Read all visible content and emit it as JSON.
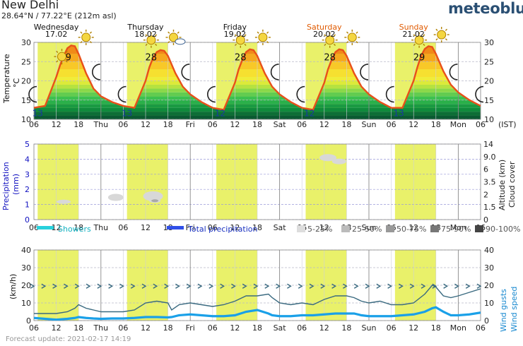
{
  "header": {
    "location": "New Delhi",
    "coords": "28.64°N / 77.22°E (212m asl)",
    "brand": "meteoblue",
    "brand_color": "#2a4f73"
  },
  "days": [
    {
      "name": "Wednesday",
      "date": "17.02",
      "weekend": false
    },
    {
      "name": "Thursday",
      "date": "18.02",
      "weekend": false
    },
    {
      "name": "Friday",
      "date": "19.02",
      "weekend": false
    },
    {
      "name": "Saturday",
      "date": "20.02",
      "weekend": true
    },
    {
      "name": "Sunday",
      "date": "21.02",
      "weekend": true
    }
  ],
  "time_axis": {
    "labels": [
      "06",
      "12",
      "18",
      "Thu",
      "06",
      "12",
      "18",
      "Fri",
      "06",
      "12",
      "18",
      "Sat",
      "06",
      "12",
      "18",
      "Sun",
      "06",
      "12",
      "18",
      "Mon",
      "06"
    ],
    "unit": "(IST)"
  },
  "colors": {
    "daylight": "#e9f16a",
    "temp_line": "#e8501a",
    "weekend_text": "#e05a00",
    "showers": "#28d0dc",
    "total_precip": "#3050e8",
    "gust_line": "#3a6a80",
    "wind_line": "#1aa0e8",
    "precip_axis": "#1010c0",
    "wind_axis": "#1a8ad0"
  },
  "footer": {
    "update": "Forecast update: 2021-02-17 14:19"
  },
  "chart_data": [
    {
      "type": "area",
      "name": "temperature",
      "ylabel": "Temperature °C",
      "ylim": [
        10,
        30
      ],
      "yticks": [
        10,
        15,
        20,
        25,
        30
      ],
      "hours_start": "2021-02-17 06:00",
      "x_hours": [
        0,
        3,
        6,
        7,
        8,
        9,
        10,
        11,
        12,
        14,
        16,
        18,
        21,
        24,
        27,
        30,
        31,
        32,
        33,
        34,
        35,
        36,
        38,
        40,
        42,
        45,
        48,
        51,
        54,
        55,
        56,
        57,
        58,
        59,
        60,
        62,
        64,
        66,
        69,
        72,
        75,
        78,
        79,
        80,
        81,
        82,
        83,
        84,
        86,
        88,
        90,
        93,
        96,
        99,
        102,
        103,
        104,
        105,
        106,
        107,
        108,
        110,
        112,
        114,
        117,
        120
      ],
      "y_values": [
        13,
        13.5,
        21,
        24,
        26.5,
        28.5,
        29.2,
        29,
        27,
        22,
        18,
        16,
        14.5,
        13.5,
        13,
        20,
        23.5,
        26,
        27.5,
        28,
        27.8,
        26.5,
        22,
        18.5,
        16.5,
        14.5,
        13,
        12.5,
        19.5,
        23,
        25.5,
        27.5,
        28.2,
        28,
        26.5,
        22,
        18.5,
        16.5,
        14.5,
        13,
        12.5,
        19.5,
        23,
        25.5,
        27.5,
        28.2,
        28,
        26.5,
        22,
        18.5,
        16.5,
        14.5,
        13,
        13,
        20,
        23.5,
        26.5,
        28.3,
        29,
        28.8,
        27,
        22.5,
        19,
        17,
        15,
        13.5
      ],
      "max_labels": [
        "29",
        "28",
        "28",
        "28",
        "29"
      ],
      "min_labels": [
        "13",
        "13",
        "12",
        "12",
        "13"
      ]
    },
    {
      "type": "bar",
      "name": "precipitation",
      "ylabel": "Precipitation (mm)",
      "ylim": [
        0,
        5
      ],
      "yticks": [
        0,
        1,
        2,
        3,
        4,
        5
      ],
      "ylabel_right": "Altitude (km) Cloud cover",
      "altitude_ticks": [
        "0",
        "1.5",
        "2",
        "3.5",
        "6",
        "9.0",
        "14"
      ],
      "values": [],
      "legend": [
        {
          "label": "Showers",
          "kind": "line",
          "color": "#28d0dc"
        },
        {
          "label": "Total precipitation",
          "kind": "line",
          "color": "#3050e8"
        },
        {
          "label": "5-25%",
          "kind": "box",
          "color": "#dddddd"
        },
        {
          "label": "25-50%",
          "kind": "box",
          "color": "#bbbbbb"
        },
        {
          "label": "50-75%",
          "kind": "box",
          "color": "#999999"
        },
        {
          "label": "75-90%",
          "kind": "box",
          "color": "#777777"
        },
        {
          "label": "90-100%",
          "kind": "box",
          "color": "#444444"
        }
      ]
    },
    {
      "type": "line",
      "name": "wind",
      "ylabel": "(km/h)",
      "ylabel_right": "Wind gusts Wind speed",
      "ylim": [
        0,
        40
      ],
      "yticks": [
        0,
        10,
        20,
        30,
        40
      ],
      "x_hours": [
        0,
        3,
        6,
        9,
        11,
        12,
        14,
        16,
        18,
        21,
        24,
        27,
        30,
        33,
        36,
        37,
        39,
        42,
        45,
        48,
        51,
        54,
        57,
        60,
        63,
        64,
        66,
        69,
        72,
        75,
        78,
        81,
        84,
        86,
        88,
        90,
        93,
        96,
        99,
        102,
        105,
        107,
        108,
        110,
        112,
        114,
        117,
        120
      ],
      "series": [
        {
          "name": "Wind gusts",
          "values": [
            4,
            4,
            4,
            5,
            7,
            9,
            7,
            6,
            5,
            5,
            5,
            6,
            10,
            11,
            10,
            6,
            9,
            10,
            9,
            8,
            9,
            11,
            14,
            14,
            15,
            13,
            10,
            9,
            10,
            9,
            12,
            14,
            14,
            13,
            11,
            10,
            11,
            9,
            9,
            10,
            15,
            20,
            19,
            14,
            13,
            14,
            16,
            18
          ]
        },
        {
          "name": "Wind speed",
          "values": [
            1.5,
            1,
            0.5,
            1,
            1.5,
            2,
            1.5,
            1.2,
            1,
            1.2,
            1.2,
            1.5,
            2,
            2,
            1.8,
            2,
            3,
            3.5,
            3,
            2.5,
            2.5,
            3,
            5,
            6,
            4,
            3,
            2.5,
            2.5,
            3,
            3,
            3.5,
            4,
            4,
            4,
            3,
            2.5,
            2.5,
            2.5,
            3,
            3.5,
            5,
            7,
            7.5,
            5,
            3,
            3,
            3.5,
            4.5
          ]
        }
      ]
    }
  ]
}
